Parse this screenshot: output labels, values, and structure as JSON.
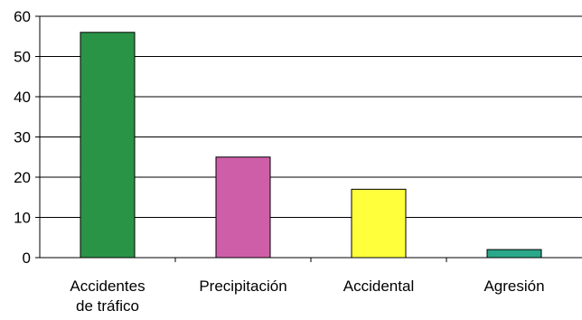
{
  "chart_data": {
    "type": "bar",
    "categories": [
      "Accidentes de tráfico",
      "Precipitación",
      "Accidental",
      "Agresión"
    ],
    "category_lines": [
      [
        "Accidentes",
        "de tráfico"
      ],
      [
        "Precipitación"
      ],
      [
        "Accidental"
      ],
      [
        "Agresión"
      ]
    ],
    "values": [
      56,
      25,
      17,
      2
    ],
    "bar_colors": [
      "#2a9446",
      "#cf5ea8",
      "#ffff3b",
      "#2aa889"
    ],
    "ylim": [
      0,
      60
    ],
    "yticks": [
      0,
      10,
      20,
      30,
      40,
      50,
      60
    ],
    "grid": true,
    "legend": "none",
    "title": "",
    "xlabel": "",
    "ylabel": ""
  }
}
